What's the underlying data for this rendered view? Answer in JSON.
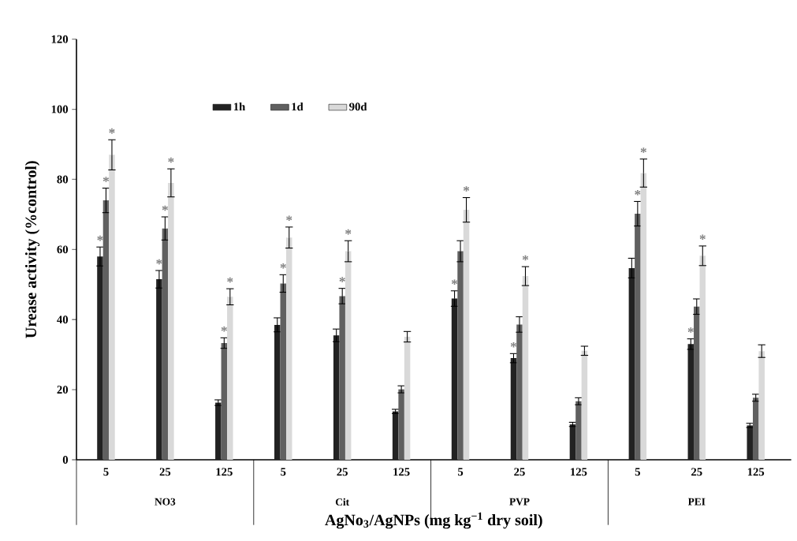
{
  "chart_data": {
    "type": "bar",
    "ylabel": "Urease activity (%control)",
    "xlabel": "AgNo$_{3}$/AgNPs (mg kg$^{−1}$ dry soil)",
    "categories": [
      "5",
      "25",
      "125",
      "5",
      "25",
      "125",
      "5",
      "25",
      "125",
      "5",
      "25",
      "125"
    ],
    "annotations": [
      "NO3",
      "Cit",
      "PVP",
      "PEI"
    ],
    "series": [
      {
        "name": "1h",
        "color": "#222222",
        "values": [
          58,
          51.5,
          16.3,
          38.5,
          35.5,
          13.8,
          46,
          29,
          10.1,
          54.7,
          33,
          9.8
        ],
        "errors": [
          2.7,
          2.5,
          0.8,
          2,
          1.8,
          0.6,
          2.2,
          1.3,
          0.6,
          2.8,
          1.5,
          0.6
        ],
        "value_labels": [
          "*",
          "*",
          null,
          null,
          null,
          null,
          "*",
          "*",
          null,
          null,
          "*",
          null
        ]
      },
      {
        "name": "1d",
        "color": "#606060",
        "values": [
          74,
          66,
          33.3,
          50.3,
          46.7,
          20.1,
          59.5,
          38.6,
          16.7,
          70.2,
          43.7,
          17.7
        ],
        "errors": [
          3.5,
          3.3,
          1.5,
          2.5,
          2.2,
          1,
          3,
          2.2,
          1,
          3.5,
          2.2,
          1
        ],
        "value_labels": [
          "*",
          "*",
          "*",
          "*",
          "*",
          null,
          null,
          null,
          null,
          "*",
          null,
          null
        ]
      },
      {
        "name": "90d",
        "color": "#d9d9d9",
        "values": [
          87,
          79,
          46.5,
          63.4,
          59.5,
          35.1,
          71.3,
          52.4,
          31.1,
          81.8,
          58.2,
          31
        ],
        "errors": [
          4.3,
          4,
          2.3,
          3,
          3,
          1.5,
          3.5,
          2.7,
          1.3,
          4,
          2.8,
          1.8
        ],
        "value_labels": [
          "*",
          "*",
          "*",
          "*",
          "*",
          null,
          "*",
          "*",
          null,
          "*",
          "*",
          null
        ]
      }
    ],
    "ylim": [
      0,
      120
    ],
    "yticks": [
      0,
      20,
      40,
      60,
      80,
      100,
      120
    ],
    "legend": "top",
    "grid": false
  }
}
